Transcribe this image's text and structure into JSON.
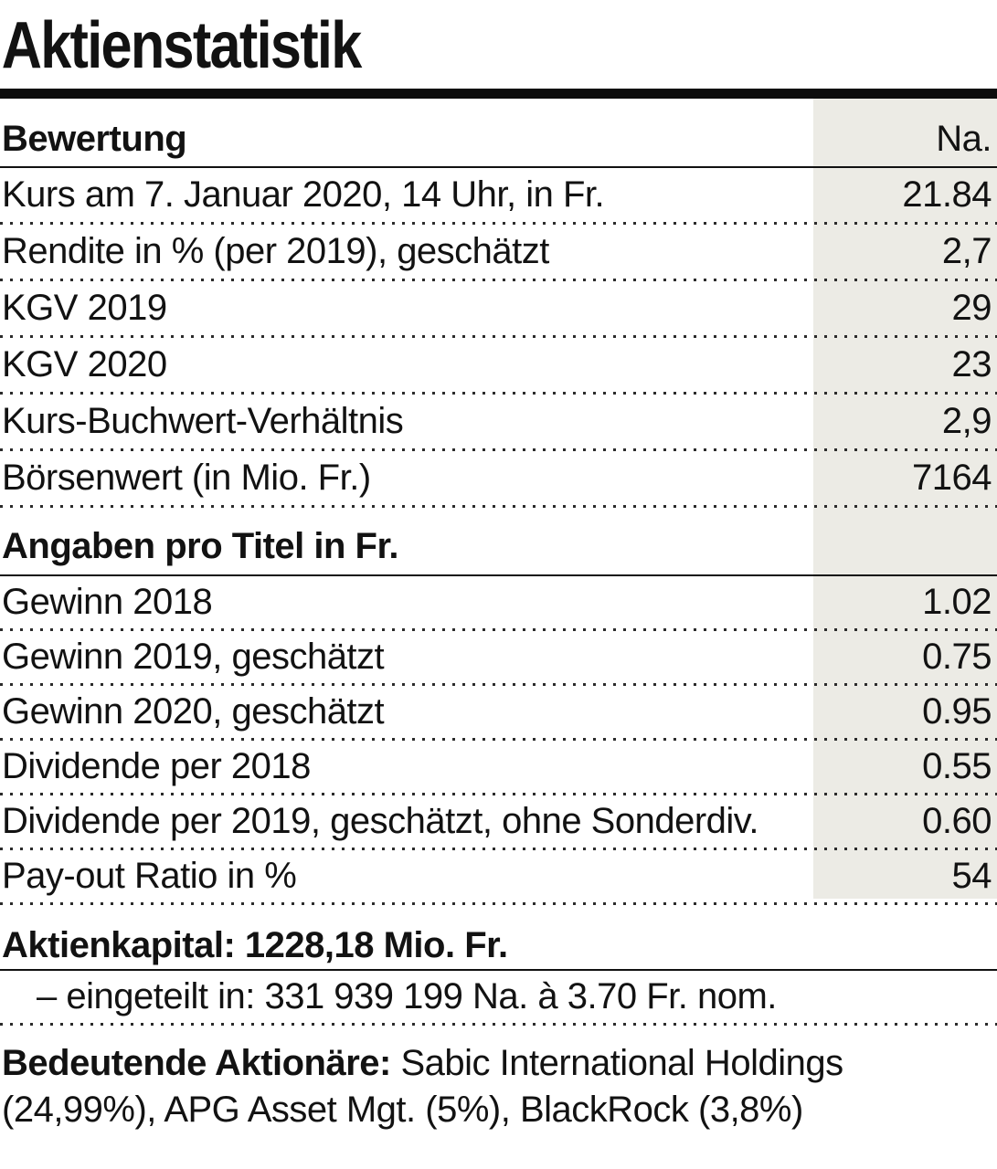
{
  "title": "Aktienstatistik",
  "table": {
    "value_column_header": "Na.",
    "sections": [
      {
        "header": "Bewertung",
        "rows": [
          {
            "label": "Kurs am 7. Januar 2020, 14 Uhr, in Fr.",
            "value": "21.84"
          },
          {
            "label": "Rendite in % (per 2019), geschätzt",
            "value": "2,7"
          },
          {
            "label": "KGV 2019",
            "value": "29"
          },
          {
            "label": "KGV 2020",
            "value": "23"
          },
          {
            "label": "Kurs-Buchwert-Verhältnis",
            "value": "2,9"
          },
          {
            "label": "Börsenwert (in Mio. Fr.)",
            "value": "7164"
          }
        ]
      },
      {
        "header": "Angaben pro Titel in Fr.",
        "rows": [
          {
            "label": "Gewinn 2018",
            "value": "1.02"
          },
          {
            "label": "Gewinn 2019, geschätzt",
            "value": "0.75"
          },
          {
            "label": "Gewinn 2020, geschätzt",
            "value": "0.95"
          },
          {
            "label": "Dividende per 2018",
            "value": "0.55"
          },
          {
            "label": "Dividende per 2019, geschätzt, ohne Sonderdiv.",
            "value": "0.60"
          },
          {
            "label": "Pay-out Ratio in %",
            "value": "54"
          }
        ]
      }
    ]
  },
  "capital": {
    "heading": "Aktienkapital: 1228,18 Mio. Fr.",
    "detail": "– eingeteilt in: 331 939 199 Na. à 3.70 Fr. nom."
  },
  "shareholders": {
    "label": "Bedeutende Aktionäre:",
    "text": " Sabic International Holdings (24,99%), APG Asset Mgt. (5%), BlackRock (3,8%)"
  },
  "colors": {
    "value_column_shade": "#ECEBE5",
    "text": "#121212",
    "rule": "#0d0d0d"
  }
}
